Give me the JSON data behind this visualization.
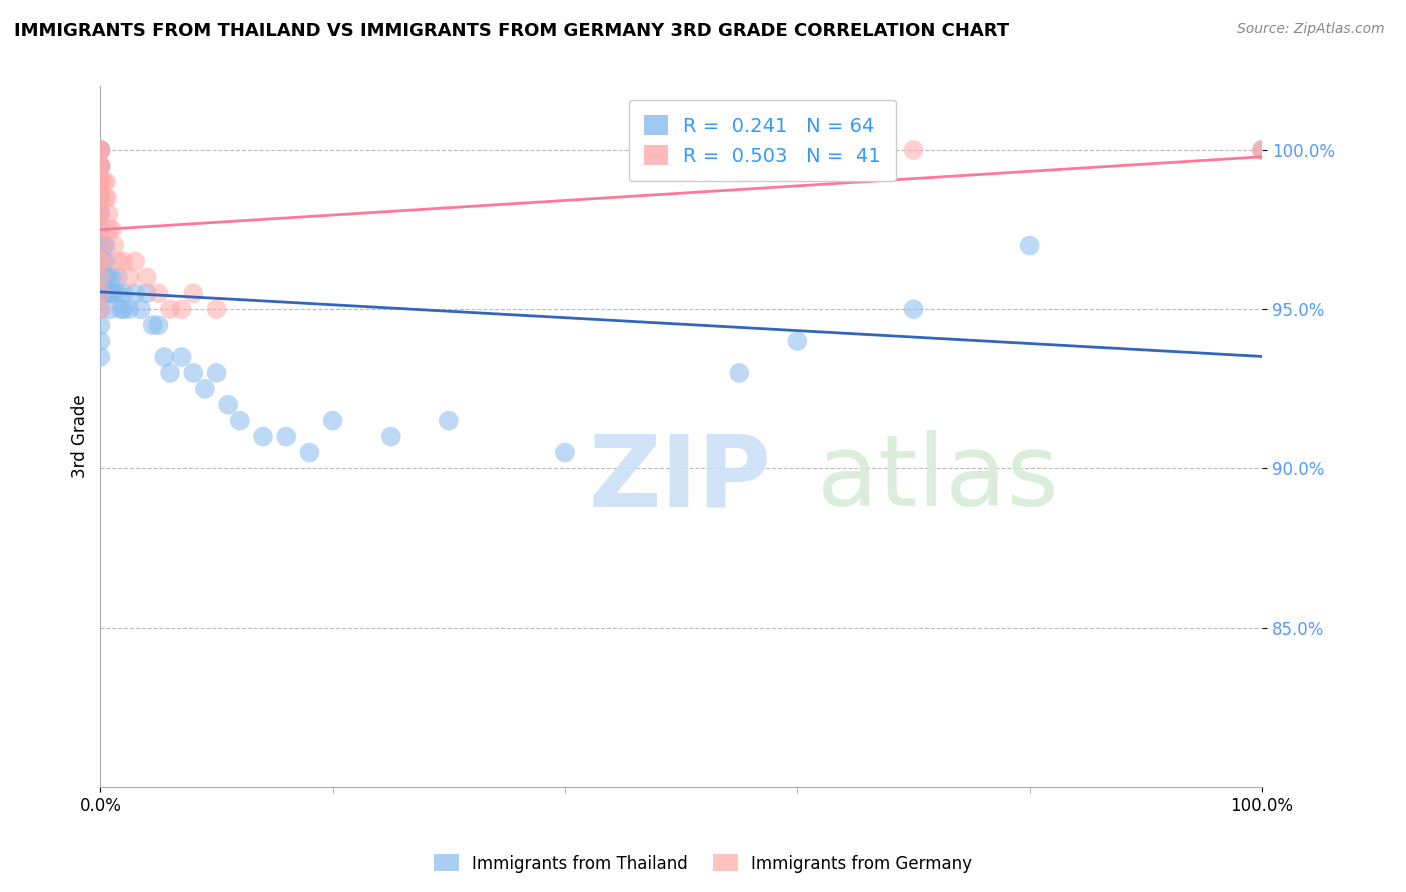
{
  "title": "IMMIGRANTS FROM THAILAND VS IMMIGRANTS FROM GERMANY 3RD GRADE CORRELATION CHART",
  "source": "Source: ZipAtlas.com",
  "ylabel": "3rd Grade",
  "color_thailand": "#88BBEE",
  "color_germany": "#FFAAAA",
  "color_line_thailand": "#3366BB",
  "color_line_germany": "#FF7799",
  "xlim": [
    0.0,
    100.0
  ],
  "ylim": [
    80.0,
    102.0
  ],
  "y_ticks": [
    85.0,
    90.0,
    95.0,
    100.0
  ],
  "y_tick_labels": [
    "85.0%",
    "90.0%",
    "95.0%",
    "100.0%"
  ],
  "thailand_x": [
    0.0,
    0.0,
    0.0,
    0.0,
    0.0,
    0.0,
    0.0,
    0.0,
    0.0,
    0.0,
    0.0,
    0.0,
    0.0,
    0.0,
    0.0,
    0.0,
    0.0,
    0.0,
    0.0,
    0.0,
    0.3,
    0.3,
    0.4,
    0.4,
    0.5,
    0.5,
    0.6,
    0.7,
    0.8,
    0.9,
    1.0,
    1.0,
    1.2,
    1.5,
    1.5,
    1.8,
    2.0,
    2.0,
    2.5,
    3.0,
    3.5,
    4.0,
    4.5,
    5.0,
    5.5,
    6.0,
    7.0,
    8.0,
    9.0,
    10.0,
    11.0,
    12.0,
    14.0,
    16.0,
    18.0,
    20.0,
    25.0,
    30.0,
    40.0,
    55.0,
    60.0,
    70.0,
    80.0,
    100.0
  ],
  "thailand_y": [
    100.0,
    100.0,
    100.0,
    99.5,
    99.5,
    99.0,
    99.0,
    98.5,
    98.5,
    98.0,
    98.0,
    97.5,
    97.0,
    96.5,
    96.0,
    95.5,
    95.0,
    94.5,
    94.0,
    93.5,
    97.0,
    96.5,
    96.0,
    95.5,
    97.0,
    96.5,
    95.5,
    96.0,
    95.5,
    95.0,
    96.0,
    95.5,
    95.5,
    96.0,
    95.5,
    95.0,
    95.5,
    95.0,
    95.0,
    95.5,
    95.0,
    95.5,
    94.5,
    94.5,
    93.5,
    93.0,
    93.5,
    93.0,
    92.5,
    93.0,
    92.0,
    91.5,
    91.0,
    91.0,
    90.5,
    91.5,
    91.0,
    91.5,
    90.5,
    93.0,
    94.0,
    95.0,
    97.0,
    100.0
  ],
  "germany_x": [
    0.0,
    0.0,
    0.0,
    0.0,
    0.0,
    0.0,
    0.0,
    0.0,
    0.0,
    0.0,
    0.0,
    0.0,
    0.0,
    0.0,
    0.0,
    0.0,
    0.0,
    0.0,
    0.0,
    0.0,
    0.3,
    0.4,
    0.5,
    0.6,
    0.7,
    0.8,
    1.0,
    1.2,
    1.5,
    2.0,
    2.5,
    3.0,
    4.0,
    5.0,
    6.0,
    7.0,
    8.0,
    10.0,
    70.0,
    100.0,
    100.0
  ],
  "germany_y": [
    100.0,
    100.0,
    100.0,
    99.5,
    99.5,
    99.0,
    99.0,
    98.5,
    98.0,
    97.5,
    97.0,
    96.5,
    96.5,
    96.0,
    95.5,
    95.0,
    99.5,
    99.0,
    98.5,
    98.0,
    99.0,
    98.5,
    99.0,
    98.5,
    98.0,
    97.5,
    97.5,
    97.0,
    96.5,
    96.5,
    96.0,
    96.5,
    96.0,
    95.5,
    95.0,
    95.0,
    95.5,
    95.0,
    100.0,
    100.0,
    100.0
  ],
  "watermark_zip": "ZIP",
  "watermark_atlas": "atlas",
  "legend_entries": [
    {
      "label": "R =  0.241   N = 64",
      "color": "#88BBEE"
    },
    {
      "label": "R =  0.503   N =  41",
      "color": "#FFAAAA"
    }
  ],
  "bottom_legend": [
    "Immigrants from Thailand",
    "Immigrants from Germany"
  ]
}
